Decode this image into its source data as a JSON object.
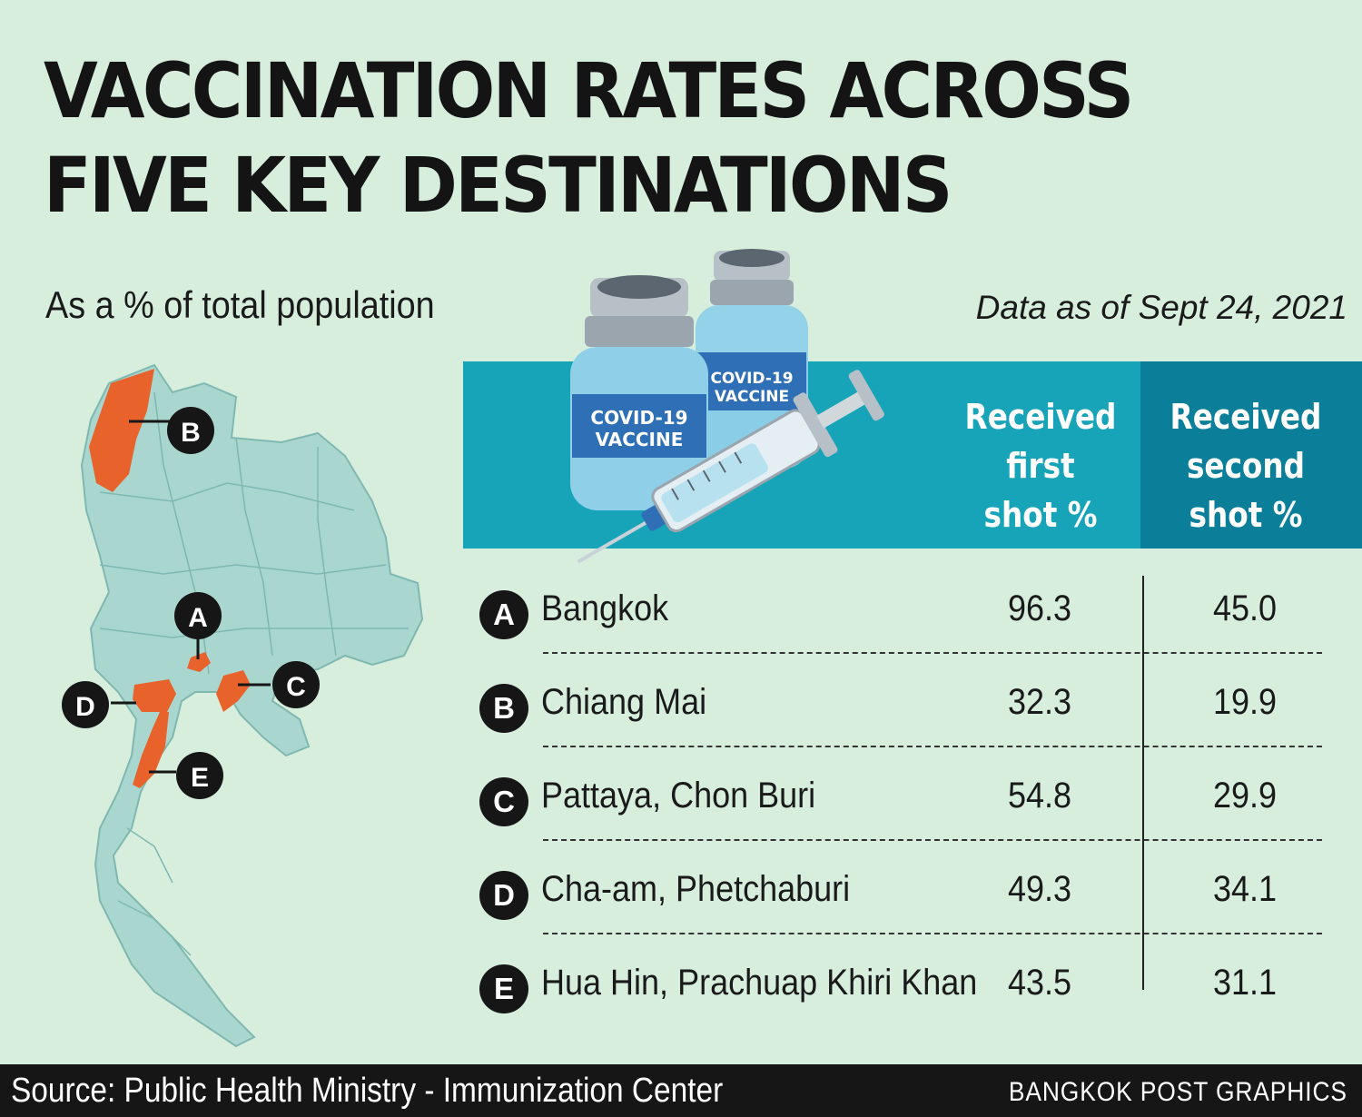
{
  "title_lines": [
    "VACCINATION RATES ACROSS",
    "FIVE KEY DESTINATIONS"
  ],
  "subtitle": "As a % of total population",
  "dateline": "Data as of Sept 24, 2021",
  "illustration": {
    "vial_label_lines": [
      "COVID-19",
      "VACCINE"
    ],
    "colors": {
      "vial_glass": "#8fd0e8",
      "vial_label": "#2e6fb5",
      "cap_metal": "#b7c0c7",
      "syringe_barrel": "#e4eef3"
    }
  },
  "columns": {
    "first": [
      "Received",
      "first",
      "shot %"
    ],
    "second": [
      "Received",
      "second",
      "shot %"
    ]
  },
  "map": {
    "highlight_color": "#e8622c",
    "province_color": "#a9d6cf",
    "labels": [
      "A",
      "B",
      "C",
      "D",
      "E"
    ]
  },
  "chart_data": {
    "type": "table",
    "title": "VACCINATION RATES ACROSS FIVE KEY DESTINATIONS",
    "subtitle": "As a % of total population",
    "columns": [
      "Received first shot %",
      "Received second shot %"
    ],
    "rows": [
      {
        "key": "A",
        "place": "Bangkok",
        "first": "96.3",
        "second": "45.0"
      },
      {
        "key": "B",
        "place": "Chiang Mai",
        "first": "32.3",
        "second": "19.9"
      },
      {
        "key": "C",
        "place": "Pattaya, Chon Buri",
        "first": "54.8",
        "second": "29.9"
      },
      {
        "key": "D",
        "place": "Cha-am, Phetchaburi",
        "first": "49.3",
        "second": "34.1"
      },
      {
        "key": "E",
        "place": "Hua Hin, Prachuap Khiri Khan",
        "first": "43.5",
        "second": "31.1"
      }
    ]
  },
  "footer": {
    "source": "Source: Public Health Ministry - Immunization Center",
    "credit": "BANGKOK POST GRAPHICS"
  },
  "colors": {
    "background": "#d8eedd",
    "header_first": "#17a3b8",
    "header_second": "#0b7f9a",
    "footer": "#161616"
  }
}
